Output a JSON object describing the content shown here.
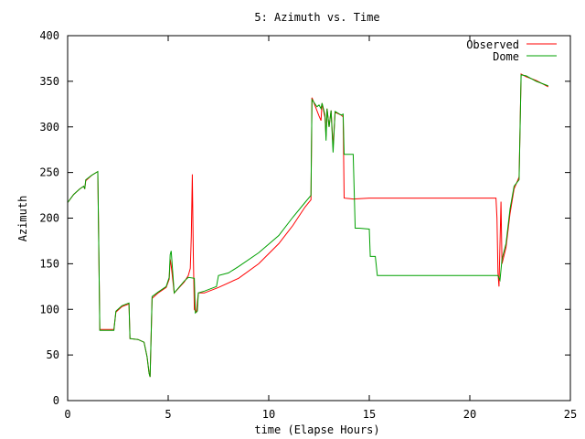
{
  "chart_data": {
    "type": "line",
    "title": "5: Azimuth vs. Time",
    "xlabel": "time (Elapse Hours)",
    "ylabel": "Azimuth",
    "xlim": [
      0,
      25
    ],
    "ylim": [
      0,
      400
    ],
    "xticks": [
      0,
      5,
      10,
      15,
      20,
      25
    ],
    "yticks": [
      0,
      50,
      100,
      150,
      200,
      250,
      300,
      350,
      400
    ],
    "grid": false,
    "legend_position": "top-right",
    "series": [
      {
        "name": "Observed",
        "color": "#ff0000",
        "points": [
          [
            0,
            217
          ],
          [
            0.3,
            226
          ],
          [
            0.6,
            232
          ],
          [
            0.8,
            235
          ],
          [
            0.85,
            232
          ],
          [
            0.9,
            241
          ],
          [
            1.2,
            247
          ],
          [
            1.5,
            251
          ],
          [
            1.55,
            165
          ],
          [
            1.6,
            78
          ],
          [
            2.0,
            78
          ],
          [
            2.3,
            78
          ],
          [
            2.4,
            97
          ],
          [
            2.7,
            103
          ],
          [
            3.05,
            106
          ],
          [
            3.1,
            68
          ],
          [
            3.5,
            67
          ],
          [
            3.8,
            64
          ],
          [
            3.95,
            48
          ],
          [
            4.05,
            30
          ],
          [
            4.1,
            26
          ],
          [
            4.2,
            112
          ],
          [
            4.5,
            118
          ],
          [
            4.9,
            124
          ],
          [
            5.05,
            133
          ],
          [
            5.1,
            155
          ],
          [
            5.15,
            148
          ],
          [
            5.3,
            118
          ],
          [
            5.8,
            130
          ],
          [
            6.0,
            137
          ],
          [
            6.1,
            145
          ],
          [
            6.15,
            180
          ],
          [
            6.2,
            248
          ],
          [
            6.25,
            160
          ],
          [
            6.3,
            100
          ],
          [
            6.4,
            97
          ],
          [
            6.5,
            118
          ],
          [
            6.8,
            118
          ],
          [
            7.5,
            124
          ],
          [
            8.5,
            134
          ],
          [
            9.5,
            150
          ],
          [
            10.5,
            172
          ],
          [
            11.2,
            192
          ],
          [
            11.8,
            212
          ],
          [
            12.1,
            220
          ],
          [
            12.15,
            332
          ],
          [
            12.5,
            312
          ],
          [
            12.6,
            307
          ],
          [
            12.65,
            326
          ],
          [
            12.8,
            310
          ],
          [
            12.85,
            290
          ],
          [
            12.9,
            320
          ],
          [
            13.0,
            300
          ],
          [
            13.1,
            318
          ],
          [
            13.2,
            278
          ],
          [
            13.3,
            316
          ],
          [
            13.6,
            313
          ],
          [
            13.7,
            311
          ],
          [
            13.75,
            222
          ],
          [
            14.2,
            221
          ],
          [
            15.0,
            222
          ],
          [
            17.0,
            222
          ],
          [
            19.0,
            222
          ],
          [
            21.3,
            222
          ],
          [
            21.35,
            200
          ],
          [
            21.4,
            140
          ],
          [
            21.45,
            125
          ],
          [
            21.55,
            218
          ],
          [
            21.6,
            150
          ],
          [
            21.8,
            168
          ],
          [
            22.0,
            205
          ],
          [
            22.2,
            232
          ],
          [
            22.45,
            245
          ],
          [
            22.55,
            358
          ],
          [
            22.8,
            355
          ],
          [
            23.3,
            351
          ],
          [
            23.9,
            344
          ]
        ]
      },
      {
        "name": "Dome",
        "color": "#00a000",
        "points": [
          [
            0,
            217
          ],
          [
            0.3,
            226
          ],
          [
            0.6,
            232
          ],
          [
            0.8,
            235
          ],
          [
            0.85,
            232
          ],
          [
            0.9,
            242
          ],
          [
            1.2,
            247
          ],
          [
            1.5,
            251
          ],
          [
            1.55,
            165
          ],
          [
            1.6,
            77
          ],
          [
            2.0,
            77
          ],
          [
            2.3,
            77
          ],
          [
            2.4,
            98
          ],
          [
            2.7,
            104
          ],
          [
            3.05,
            107
          ],
          [
            3.1,
            68
          ],
          [
            3.5,
            67
          ],
          [
            3.8,
            64
          ],
          [
            3.95,
            48
          ],
          [
            4.05,
            30
          ],
          [
            4.1,
            26
          ],
          [
            4.2,
            114
          ],
          [
            4.5,
            119
          ],
          [
            4.9,
            125
          ],
          [
            5.05,
            135
          ],
          [
            5.1,
            160
          ],
          [
            5.15,
            164
          ],
          [
            5.3,
            118
          ],
          [
            5.8,
            131
          ],
          [
            6.0,
            135
          ],
          [
            6.3,
            134
          ],
          [
            6.35,
            96
          ],
          [
            6.45,
            98
          ],
          [
            6.5,
            118
          ],
          [
            6.8,
            120
          ],
          [
            7.4,
            125
          ],
          [
            7.5,
            137
          ],
          [
            8.0,
            140
          ],
          [
            8.5,
            147
          ],
          [
            9.5,
            162
          ],
          [
            10.5,
            181
          ],
          [
            11.2,
            201
          ],
          [
            11.8,
            217
          ],
          [
            12.1,
            225
          ],
          [
            12.15,
            330
          ],
          [
            12.4,
            322
          ],
          [
            12.5,
            324
          ],
          [
            12.6,
            320
          ],
          [
            12.65,
            326
          ],
          [
            12.8,
            313
          ],
          [
            12.85,
            285
          ],
          [
            12.9,
            320
          ],
          [
            13.0,
            300
          ],
          [
            13.1,
            318
          ],
          [
            13.2,
            272
          ],
          [
            13.3,
            317
          ],
          [
            13.6,
            313
          ],
          [
            13.7,
            314
          ],
          [
            13.75,
            270
          ],
          [
            14.2,
            270
          ],
          [
            14.3,
            189
          ],
          [
            14.5,
            189
          ],
          [
            15.0,
            188
          ],
          [
            15.05,
            158
          ],
          [
            15.3,
            158
          ],
          [
            15.4,
            137
          ],
          [
            17.0,
            137
          ],
          [
            19.0,
            137
          ],
          [
            21.4,
            137
          ],
          [
            21.5,
            132
          ],
          [
            21.6,
            155
          ],
          [
            21.8,
            172
          ],
          [
            22.0,
            210
          ],
          [
            22.2,
            235
          ],
          [
            22.45,
            242
          ],
          [
            22.55,
            357
          ],
          [
            22.8,
            356
          ],
          [
            23.3,
            350
          ],
          [
            23.9,
            345
          ]
        ]
      }
    ]
  }
}
